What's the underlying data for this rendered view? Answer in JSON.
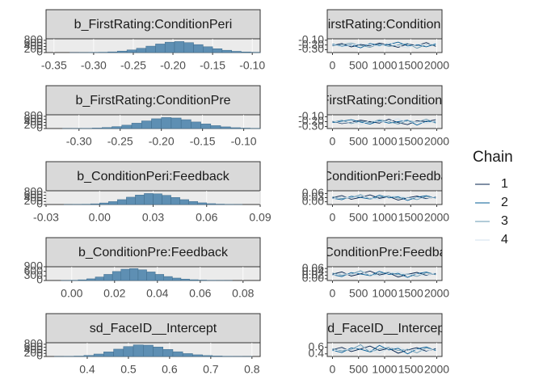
{
  "chart_data": [
    {
      "type": "histogram",
      "title": "b_FirstRating:ConditionPeri",
      "color": "#5e8fb3",
      "bins": [
        -0.33,
        -0.318,
        -0.306,
        -0.294,
        -0.282,
        -0.27,
        -0.258,
        -0.246,
        -0.234,
        -0.222,
        -0.21,
        -0.198,
        -0.186,
        -0.174,
        -0.162,
        -0.15,
        -0.138,
        -0.126,
        -0.114,
        -0.102,
        -0.09
      ],
      "counts": [
        1,
        3,
        8,
        20,
        45,
        95,
        170,
        280,
        420,
        560,
        680,
        720,
        650,
        520,
        380,
        250,
        150,
        80,
        40,
        18
      ],
      "xlim": [
        -0.36,
        -0.09
      ],
      "xticks": [
        -0.35,
        {
          "value": -0.3,
          "label": "-0.30"
        },
        -0.25,
        {
          "value": -0.2,
          "label": "-0.20"
        },
        -0.15,
        {
          "value": -0.1,
          "label": "-0.10"
        }
      ],
      "ylim": [
        0,
        900
      ],
      "yticks": [
        0,
        200,
        400,
        600,
        800
      ]
    },
    {
      "type": "line",
      "title": "b_FirstRating:ConditionPeri",
      "legend_title": "Chain",
      "x": [
        0,
        180,
        360,
        540,
        720,
        900,
        1080,
        1260,
        1440,
        1620,
        1800,
        1980
      ],
      "series": [
        {
          "name": "1",
          "color": "#011f4b",
          "values": [
            -0.21,
            -0.17,
            -0.24,
            -0.19,
            -0.22,
            -0.16,
            -0.2,
            -0.25,
            -0.18,
            -0.21,
            -0.15,
            -0.23
          ]
        },
        {
          "name": "2",
          "color": "#005b96",
          "values": [
            -0.18,
            -0.23,
            -0.2,
            -0.26,
            -0.17,
            -0.21,
            -0.19,
            -0.14,
            -0.22,
            -0.2,
            -0.24,
            -0.18
          ]
        },
        {
          "name": "3",
          "color": "#6497b1",
          "values": [
            -0.22,
            -0.19,
            -0.16,
            -0.21,
            -0.25,
            -0.18,
            -0.23,
            -0.2,
            -0.17,
            -0.27,
            -0.19,
            -0.21
          ]
        },
        {
          "name": "4",
          "color": "#d1e1ec",
          "values": [
            -0.19,
            -0.24,
            -0.21,
            -0.17,
            -0.2,
            -0.23,
            -0.15,
            -0.22,
            -0.26,
            -0.18,
            -0.2,
            -0.16
          ]
        }
      ],
      "xlim": [
        -100,
        2100
      ],
      "xticks": [
        0,
        500,
        1000,
        1500,
        2000
      ],
      "ylim": [
        -0.36,
        -0.07
      ],
      "yticks": [
        {
          "value": -0.3,
          "label": "-0.30"
        },
        {
          "value": -0.2,
          "label": "-0.20"
        },
        {
          "value": -0.1,
          "label": "-0.10"
        }
      ]
    },
    {
      "type": "histogram",
      "title": "b_FirstRating:ConditionPre",
      "color": "#5e8fb3",
      "bins": [
        -0.32,
        -0.308,
        -0.296,
        -0.284,
        -0.272,
        -0.26,
        -0.248,
        -0.236,
        -0.224,
        -0.212,
        -0.2,
        -0.188,
        -0.176,
        -0.164,
        -0.152,
        -0.14,
        -0.128,
        -0.116,
        -0.104,
        -0.092,
        -0.08
      ],
      "counts": [
        2,
        5,
        12,
        30,
        65,
        125,
        220,
        350,
        500,
        640,
        720,
        690,
        580,
        430,
        300,
        190,
        110,
        55,
        25,
        10
      ],
      "xlim": [
        -0.34,
        -0.08
      ],
      "xticks": [
        {
          "value": -0.3,
          "label": "-0.30"
        },
        -0.25,
        {
          "value": -0.2,
          "label": "-0.20"
        },
        -0.15,
        {
          "value": -0.1,
          "label": "-0.10"
        }
      ],
      "ylim": [
        0,
        900
      ],
      "yticks": [
        0,
        200,
        400,
        600,
        800
      ]
    },
    {
      "type": "line",
      "title": "b_FirstRating:ConditionPre",
      "x": [
        0,
        180,
        360,
        540,
        720,
        900,
        1080,
        1260,
        1440,
        1620,
        1800,
        1980
      ],
      "series": [
        {
          "name": "1",
          "color": "#011f4b",
          "values": [
            -0.19,
            -0.24,
            -0.21,
            -0.17,
            -0.2,
            -0.23,
            -0.15,
            -0.22,
            -0.26,
            -0.18,
            -0.2,
            -0.16
          ]
        },
        {
          "name": "2",
          "color": "#005b96",
          "values": [
            -0.22,
            -0.19,
            -0.16,
            -0.21,
            -0.25,
            -0.18,
            -0.23,
            -0.2,
            -0.17,
            -0.27,
            -0.19,
            -0.21
          ]
        },
        {
          "name": "3",
          "color": "#6497b1",
          "values": [
            -0.21,
            -0.17,
            -0.24,
            -0.19,
            -0.22,
            -0.16,
            -0.2,
            -0.25,
            -0.18,
            -0.21,
            -0.15,
            -0.23
          ]
        },
        {
          "name": "4",
          "color": "#d1e1ec",
          "values": [
            -0.18,
            -0.23,
            -0.2,
            -0.26,
            -0.17,
            -0.21,
            -0.19,
            -0.14,
            -0.22,
            -0.2,
            -0.24,
            -0.18
          ]
        }
      ],
      "xlim": [
        -100,
        2100
      ],
      "xticks": [
        0,
        500,
        1000,
        1500,
        2000
      ],
      "ylim": [
        -0.34,
        -0.06
      ],
      "yticks": [
        {
          "value": -0.3,
          "label": "-0.30"
        },
        {
          "value": -0.2,
          "label": "-0.20"
        },
        {
          "value": -0.1,
          "label": "-0.10"
        }
      ]
    },
    {
      "type": "histogram",
      "title": "b_ConditionPeri:Feedback",
      "color": "#5e8fb3",
      "bins": [
        -0.02,
        -0.015,
        -0.01,
        -0.005,
        0,
        0.005,
        0.01,
        0.015,
        0.02,
        0.025,
        0.03,
        0.035,
        0.04,
        0.045,
        0.05,
        0.055,
        0.06,
        0.065,
        0.07,
        0.075,
        0.08
      ],
      "counts": [
        2,
        6,
        18,
        45,
        100,
        190,
        320,
        480,
        620,
        720,
        700,
        600,
        460,
        320,
        200,
        110,
        55,
        25,
        10,
        4
      ],
      "xlim": [
        -0.03,
        0.09
      ],
      "xticks": [
        -0.03,
        {
          "value": 0,
          "label": "0.00"
        },
        0.03,
        0.06,
        0.09
      ],
      "ylim": [
        0,
        900
      ],
      "yticks": [
        0,
        200,
        400,
        600,
        800
      ]
    },
    {
      "type": "line",
      "title": "b_ConditionPeri:Feedback",
      "x": [
        0,
        180,
        360,
        540,
        720,
        900,
        1080,
        1260,
        1440,
        1620,
        1800,
        1980
      ],
      "series": [
        {
          "name": "1",
          "color": "#011f4b",
          "values": [
            0.03,
            0.045,
            0.018,
            0.032,
            0.05,
            0.025,
            0.038,
            0.012,
            0.029,
            0.041,
            0.022,
            0.035
          ]
        },
        {
          "name": "2",
          "color": "#005b96",
          "values": [
            0.026,
            0.015,
            0.04,
            0.031,
            0.02,
            0.048,
            0.028,
            0.036,
            0.01,
            0.033,
            0.044,
            0.027
          ]
        },
        {
          "name": "3",
          "color": "#6497b1",
          "values": [
            0.037,
            0.024,
            0.03,
            0.052,
            0.019,
            0.034,
            0.042,
            0.026,
            0.031,
            0.016,
            0.039,
            0.029
          ]
        },
        {
          "name": "4",
          "color": "#d1e1ec",
          "values": [
            0.021,
            0.034,
            0.027,
            0.043,
            0.03,
            0.014,
            0.036,
            0.047,
            0.025,
            0.032,
            0.018,
            0.04
          ]
        }
      ],
      "xlim": [
        -100,
        2100
      ],
      "xticks": [
        0,
        500,
        1000,
        1500,
        2000
      ],
      "ylim": [
        -0.02,
        0.08
      ],
      "yticks": [
        {
          "value": 0,
          "label": "0.00"
        },
        0.03,
        0.06
      ]
    },
    {
      "type": "histogram",
      "title": "b_ConditionPre:Feedback",
      "color": "#5e8fb3",
      "bins": [
        -0.005,
        -0.001,
        0.003,
        0.007,
        0.011,
        0.015,
        0.019,
        0.023,
        0.027,
        0.031,
        0.035,
        0.039,
        0.043,
        0.047,
        0.051,
        0.055,
        0.059,
        0.063,
        0.067,
        0.071,
        0.075
      ],
      "counts": [
        4,
        15,
        45,
        110,
        230,
        400,
        590,
        740,
        780,
        700,
        560,
        400,
        260,
        160,
        90,
        50,
        25,
        12,
        5,
        2
      ],
      "xlim": [
        -0.012,
        0.088
      ],
      "xticks": [
        {
          "value": 0,
          "label": "0.00"
        },
        0.02,
        0.04,
        0.06,
        0.08
      ],
      "ylim": [
        0,
        900
      ],
      "yticks": [
        0,
        300,
        600,
        900
      ]
    },
    {
      "type": "line",
      "title": "b_ConditionPre:Feedback",
      "x": [
        0,
        180,
        360,
        540,
        720,
        900,
        1080,
        1260,
        1440,
        1620,
        1800,
        1980
      ],
      "series": [
        {
          "name": "1",
          "color": "#011f4b",
          "values": [
            0.027,
            0.04,
            0.016,
            0.029,
            0.045,
            0.022,
            0.034,
            0.01,
            0.026,
            0.037,
            0.02,
            0.031
          ]
        },
        {
          "name": "2",
          "color": "#005b96",
          "values": [
            0.023,
            0.013,
            0.036,
            0.028,
            0.018,
            0.043,
            0.025,
            0.032,
            0.008,
            0.03,
            0.039,
            0.024
          ]
        },
        {
          "name": "3",
          "color": "#6497b1",
          "values": [
            0.033,
            0.021,
            0.027,
            0.047,
            0.017,
            0.031,
            0.038,
            0.023,
            0.028,
            0.014,
            0.035,
            0.026
          ]
        },
        {
          "name": "4",
          "color": "#d1e1ec",
          "values": [
            0.019,
            0.031,
            0.024,
            0.039,
            0.027,
            0.012,
            0.032,
            0.042,
            0.022,
            0.029,
            0.016,
            0.036
          ]
        }
      ],
      "xlim": [
        -100,
        2100
      ],
      "xticks": [
        0,
        500,
        1000,
        1500,
        2000
      ],
      "ylim": [
        -0.01,
        0.07
      ],
      "yticks": [
        {
          "value": 0,
          "label": "0.00"
        },
        0.02,
        0.04,
        0.06
      ]
    },
    {
      "type": "histogram",
      "title": "sd_FaceID__Intercept",
      "color": "#5e8fb3",
      "bins": [
        0.32,
        0.344,
        0.368,
        0.392,
        0.416,
        0.44,
        0.464,
        0.488,
        0.512,
        0.536,
        0.56,
        0.584,
        0.608,
        0.632,
        0.656,
        0.68,
        0.704,
        0.728,
        0.752,
        0.776,
        0.8
      ],
      "counts": [
        2,
        8,
        25,
        70,
        160,
        300,
        480,
        650,
        760,
        740,
        620,
        460,
        310,
        190,
        110,
        60,
        30,
        14,
        6,
        2
      ],
      "xlim": [
        0.3,
        0.82
      ],
      "xticks": [
        0.4,
        0.5,
        0.6,
        0.7,
        0.8
      ],
      "ylim": [
        0,
        900
      ],
      "yticks": [
        0,
        200,
        400,
        600,
        800
      ]
    },
    {
      "type": "line",
      "title": "sd_FaceID__Intercept",
      "x": [
        0,
        180,
        360,
        540,
        720,
        900,
        1080,
        1260,
        1440,
        1620,
        1800,
        1980
      ],
      "series": [
        {
          "name": "1",
          "color": "#011f4b",
          "values": [
            0.53,
            0.6,
            0.47,
            0.55,
            0.64,
            0.5,
            0.57,
            0.42,
            0.52,
            0.59,
            0.48,
            0.56
          ]
        },
        {
          "name": "2",
          "color": "#005b96",
          "values": [
            0.51,
            0.44,
            0.58,
            0.54,
            0.46,
            0.66,
            0.52,
            0.57,
            0.4,
            0.55,
            0.61,
            0.5
          ]
        },
        {
          "name": "3",
          "color": "#6497b1",
          "values": [
            0.56,
            0.49,
            0.53,
            0.68,
            0.45,
            0.55,
            0.6,
            0.5,
            0.54,
            0.43,
            0.58,
            0.52
          ]
        },
        {
          "name": "4",
          "color": "#d1e1ec",
          "values": [
            0.48,
            0.55,
            0.51,
            0.62,
            0.53,
            0.41,
            0.57,
            0.63,
            0.49,
            0.54,
            0.46,
            0.59
          ]
        }
      ],
      "xlim": [
        -100,
        2100
      ],
      "xticks": [
        0,
        500,
        1000,
        1500,
        2000
      ],
      "ylim": [
        0.32,
        0.74
      ],
      "yticks": [
        0.4,
        0.6
      ]
    }
  ]
}
